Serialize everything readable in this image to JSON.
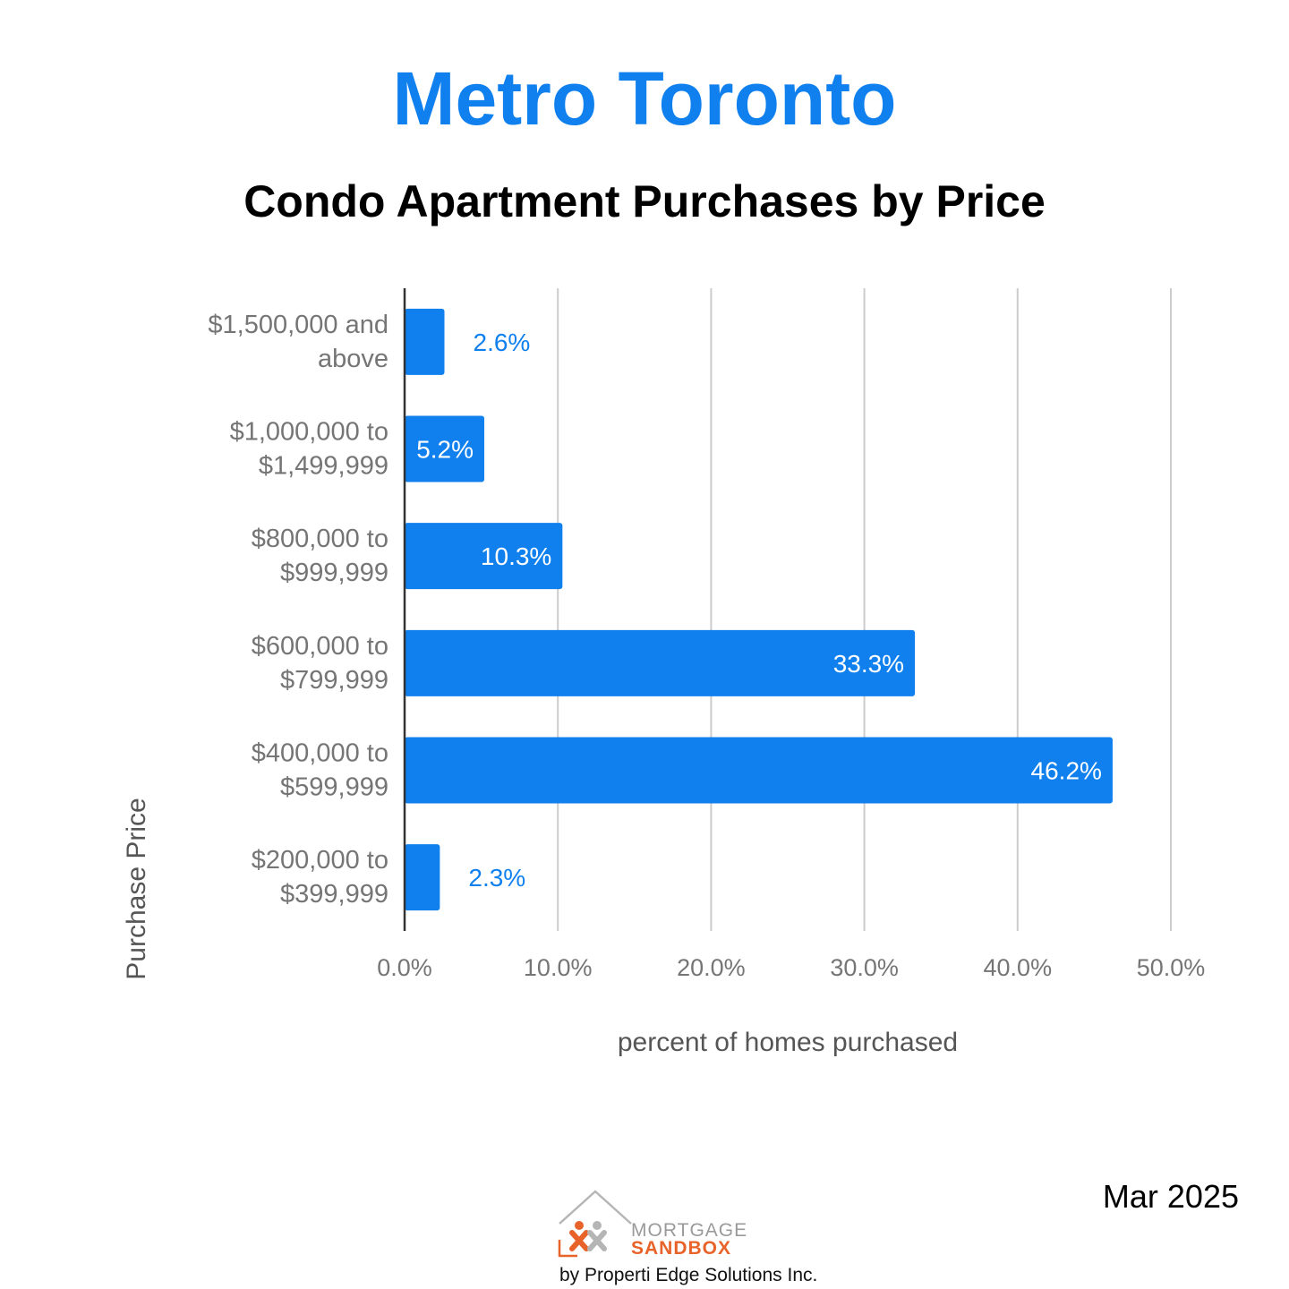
{
  "header": {
    "title": "Metro Toronto",
    "subtitle": "Condo Apartment Purchases by Price"
  },
  "colors": {
    "title": "#1080ee",
    "bar": "#1080ee",
    "label_outside": "#1080ee",
    "label_inside": "#ffffff",
    "axis_text": "#757575",
    "gridline": "#cccccc",
    "axis_line": "#333333"
  },
  "chart_data": {
    "type": "bar",
    "orientation": "horizontal",
    "title": "Condo Apartment Purchases by Price",
    "categories": [
      "$1,500,000 and above",
      "$1,000,000 to $1,499,999",
      "$800,000 to $999,999",
      "$600,000 to $799,999",
      "$400,000 to $599,999",
      "$200,000 to $399,999"
    ],
    "category_lines": [
      [
        "$1,500,000 and",
        "above"
      ],
      [
        "$1,000,000 to",
        "$1,499,999"
      ],
      [
        "$800,000 to",
        "$999,999"
      ],
      [
        "$600,000 to",
        "$799,999"
      ],
      [
        "$400,000 to",
        "$599,999"
      ],
      [
        "$200,000 to",
        "$399,999"
      ]
    ],
    "values": [
      2.6,
      5.2,
      10.3,
      33.3,
      46.2,
      2.3
    ],
    "value_labels": [
      "2.6%",
      "5.2%",
      "10.3%",
      "33.3%",
      "46.2%",
      "2.3%"
    ],
    "xlabel": "percent of homes purchased",
    "ylabel": "Purchase Price",
    "xlim": [
      0,
      50
    ],
    "xticks": [
      0,
      10,
      20,
      30,
      40,
      50
    ],
    "xtick_labels": [
      "0.0%",
      "10.0%",
      "20.0%",
      "30.0%",
      "40.0%",
      "50.0%"
    ],
    "grid": true,
    "legend": "none"
  },
  "footer": {
    "date": "Mar 2025",
    "logo_line1": "MORTGAGE",
    "logo_line2": "SANDBOX",
    "byline": "by Properti Edge Solutions Inc."
  }
}
